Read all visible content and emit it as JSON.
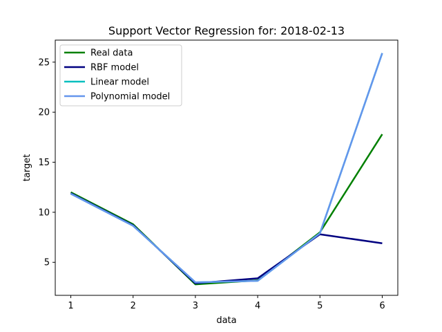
{
  "chart_data": {
    "type": "line",
    "title": "Support Vector Regression for: 2018-02-13",
    "xlabel": "data",
    "ylabel": "target",
    "x": [
      1,
      2,
      3,
      4,
      5,
      6
    ],
    "xlim": [
      0.75,
      6.25
    ],
    "ylim": [
      1.7,
      27.2
    ],
    "xticks": [
      1,
      2,
      3,
      4,
      5,
      6
    ],
    "yticks": [
      5,
      10,
      15,
      20,
      25
    ],
    "grid": false,
    "legend_position": "top-left",
    "series": [
      {
        "name": "Real data",
        "color": "#008000",
        "values": [
          12.0,
          8.8,
          2.8,
          3.2,
          8.0,
          17.8
        ]
      },
      {
        "name": "RBF model",
        "color": "#000080",
        "values": [
          11.9,
          8.7,
          2.9,
          3.4,
          7.8,
          6.9
        ]
      },
      {
        "name": "Linear model",
        "color": "#00bfbf",
        "values": [
          11.85,
          8.65,
          3.0,
          3.15,
          7.9,
          25.9
        ]
      },
      {
        "name": "Polynomial model",
        "color": "#6495ed",
        "values": [
          11.85,
          8.65,
          3.0,
          3.15,
          7.9,
          25.9
        ]
      }
    ]
  }
}
